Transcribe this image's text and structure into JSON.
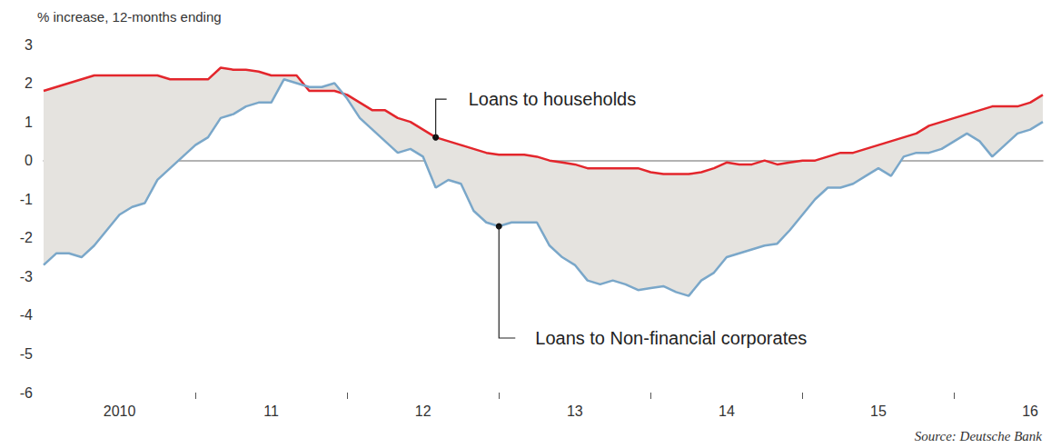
{
  "chart_data": {
    "type": "line",
    "y_label": "% increase, 12-months ending",
    "source": "Source: Deutsche Bank",
    "categories": [
      null,
      null,
      null,
      null,
      null,
      null,
      "2010",
      null,
      null,
      null,
      null,
      null,
      null,
      null,
      null,
      null,
      null,
      null,
      "11",
      null,
      null,
      null,
      null,
      null,
      null,
      null,
      null,
      null,
      null,
      null,
      "12",
      null,
      null,
      null,
      null,
      null,
      null,
      null,
      null,
      null,
      null,
      null,
      "13",
      null,
      null,
      null,
      null,
      null,
      null,
      null,
      null,
      null,
      null,
      null,
      "14",
      null,
      null,
      null,
      null,
      null,
      null,
      null,
      null,
      null,
      null,
      null,
      "15",
      null,
      null,
      null,
      null,
      null,
      null,
      null,
      null,
      null,
      null,
      null,
      "16",
      null
    ],
    "series": [
      {
        "name": "Loans to households",
        "color": "#e3262c",
        "values": [
          1.8,
          1.9,
          2.0,
          2.1,
          2.2,
          2.2,
          2.2,
          2.2,
          2.2,
          2.2,
          2.1,
          2.1,
          2.1,
          2.1,
          2.4,
          2.35,
          2.35,
          2.3,
          2.2,
          2.2,
          2.2,
          1.8,
          1.8,
          1.8,
          1.7,
          1.5,
          1.3,
          1.3,
          1.1,
          1.0,
          0.8,
          0.6,
          0.5,
          0.4,
          0.3,
          0.2,
          0.15,
          0.15,
          0.15,
          0.1,
          0.0,
          -0.05,
          -0.1,
          -0.2,
          -0.2,
          -0.2,
          -0.2,
          -0.2,
          -0.3,
          -0.35,
          -0.35,
          -0.35,
          -0.3,
          -0.2,
          -0.05,
          -0.1,
          -0.1,
          0.0,
          -0.1,
          -0.05,
          0.0,
          0.0,
          0.1,
          0.2,
          0.2,
          0.3,
          0.4,
          0.5,
          0.6,
          0.7,
          0.9,
          1.0,
          1.1,
          1.2,
          1.3,
          1.4,
          1.4,
          1.4,
          1.5,
          1.7
        ]
      },
      {
        "name": "Loans to Non-financial corporates",
        "color": "#7aa7c9",
        "values": [
          -2.7,
          -2.4,
          -2.4,
          -2.5,
          -2.2,
          -1.8,
          -1.4,
          -1.2,
          -1.1,
          -0.5,
          -0.2,
          0.1,
          0.4,
          0.6,
          1.1,
          1.2,
          1.4,
          1.5,
          1.5,
          2.1,
          2.0,
          1.9,
          1.9,
          2.0,
          1.6,
          1.1,
          0.8,
          0.5,
          0.2,
          0.3,
          0.1,
          -0.7,
          -0.5,
          -0.6,
          -1.3,
          -1.6,
          -1.7,
          -1.6,
          -1.6,
          -1.6,
          -2.2,
          -2.5,
          -2.7,
          -3.1,
          -3.2,
          -3.1,
          -3.2,
          -3.35,
          -3.3,
          -3.25,
          -3.4,
          -3.5,
          -3.1,
          -2.9,
          -2.5,
          -2.4,
          -2.3,
          -2.2,
          -2.15,
          -1.8,
          -1.4,
          -1.0,
          -0.7,
          -0.7,
          -0.6,
          -0.4,
          -0.2,
          -0.4,
          0.1,
          0.2,
          0.2,
          0.3,
          0.5,
          0.7,
          0.5,
          0.1,
          0.4,
          0.7,
          0.8,
          1.0
        ]
      }
    ],
    "ylim": [
      -6,
      3
    ],
    "yticks": [
      -6,
      -5,
      -4,
      -3,
      -2,
      -1,
      0,
      1,
      2,
      3
    ],
    "grid": false
  }
}
